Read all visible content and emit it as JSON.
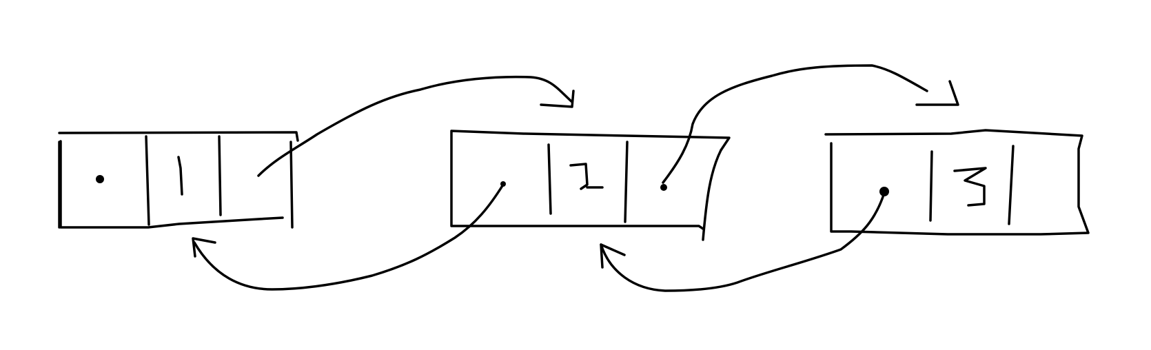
{
  "diagram": {
    "kind": "doubly-linked-list",
    "nodes": [
      {
        "id": "node-1",
        "value": "1"
      },
      {
        "id": "node-2",
        "value": "2"
      },
      {
        "id": "node-3",
        "value": "3"
      }
    ],
    "links": [
      {
        "from": "node-1",
        "to": "node-2",
        "pointer": "next"
      },
      {
        "from": "node-2",
        "to": "node-1",
        "pointer": "prev"
      },
      {
        "from": "node-2",
        "to": "node-3",
        "pointer": "next"
      },
      {
        "from": "node-3",
        "to": "node-2",
        "pointer": "prev"
      }
    ],
    "colors": {
      "ink": "#000000",
      "background": "#ffffff"
    }
  }
}
